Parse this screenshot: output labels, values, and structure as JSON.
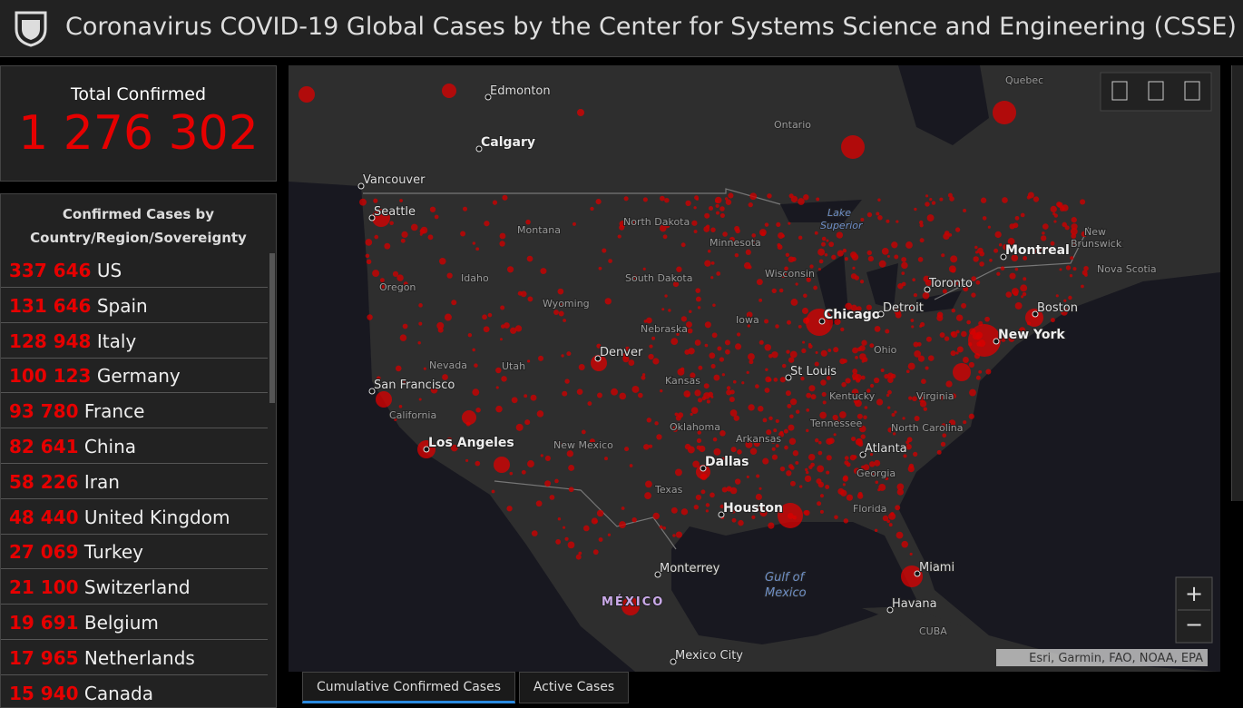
{
  "header": {
    "title": "Coronavirus COVID-19 Global Cases by the Center for Systems Science and Engineering (CSSE)"
  },
  "total": {
    "label": "Total Confirmed",
    "value": "1 276 302"
  },
  "list": {
    "title": "Confirmed Cases by Country/Region/Sovereignty",
    "rows": [
      {
        "value": "337 646",
        "name": "US"
      },
      {
        "value": "131 646",
        "name": "Spain"
      },
      {
        "value": "128 948",
        "name": "Italy"
      },
      {
        "value": "100 123",
        "name": "Germany"
      },
      {
        "value": "93 780",
        "name": "France"
      },
      {
        "value": "82 641",
        "name": "China"
      },
      {
        "value": "58 226",
        "name": "Iran"
      },
      {
        "value": "48 440",
        "name": "United Kingdom"
      },
      {
        "value": "27 069",
        "name": "Turkey"
      },
      {
        "value": "21 100",
        "name": "Switzerland"
      },
      {
        "value": "19 691",
        "name": "Belgium"
      },
      {
        "value": "17 965",
        "name": "Netherlands"
      },
      {
        "value": "15 940",
        "name": "Canada"
      }
    ]
  },
  "map": {
    "labels": [
      "Edmonton",
      "Calgary",
      "Vancouver",
      "Seattle",
      "Montana",
      "North Dakota",
      "Minnesota",
      "Idaho",
      "Oregon",
      "South Dakota",
      "Wisconsin",
      "Wyoming",
      "Nebraska",
      "Iowa",
      "Chicago",
      "Detroit",
      "Toronto",
      "Montreal",
      "New York",
      "Boston",
      "Denver",
      "Nevada",
      "Utah",
      "San Francisco",
      "St Louis",
      "Kansas",
      "Kentucky",
      "Virginia",
      "Ohio",
      "California",
      "Oklahoma",
      "Tennessee",
      "North Carolina",
      "Arkansas",
      "Los Angeles",
      "New Mexico",
      "Atlanta",
      "Dallas",
      "Georgia",
      "Texas",
      "Houston",
      "Florida",
      "Miami",
      "Monterrey",
      "MÉXICO",
      "Havana",
      "CUBA",
      "Mexico City",
      "Ontario",
      "Quebec",
      "New",
      "Brunswick",
      "Nova Scotia",
      "Lake",
      "Superior",
      "Gulf of",
      "Mexico"
    ],
    "zoom": [
      "+",
      "−"
    ],
    "attribution": "Esri, Garmin, FAO, NOAA, EPA"
  },
  "tabs": [
    "Cumulative Confirmed Cases",
    "Active Cases"
  ]
}
